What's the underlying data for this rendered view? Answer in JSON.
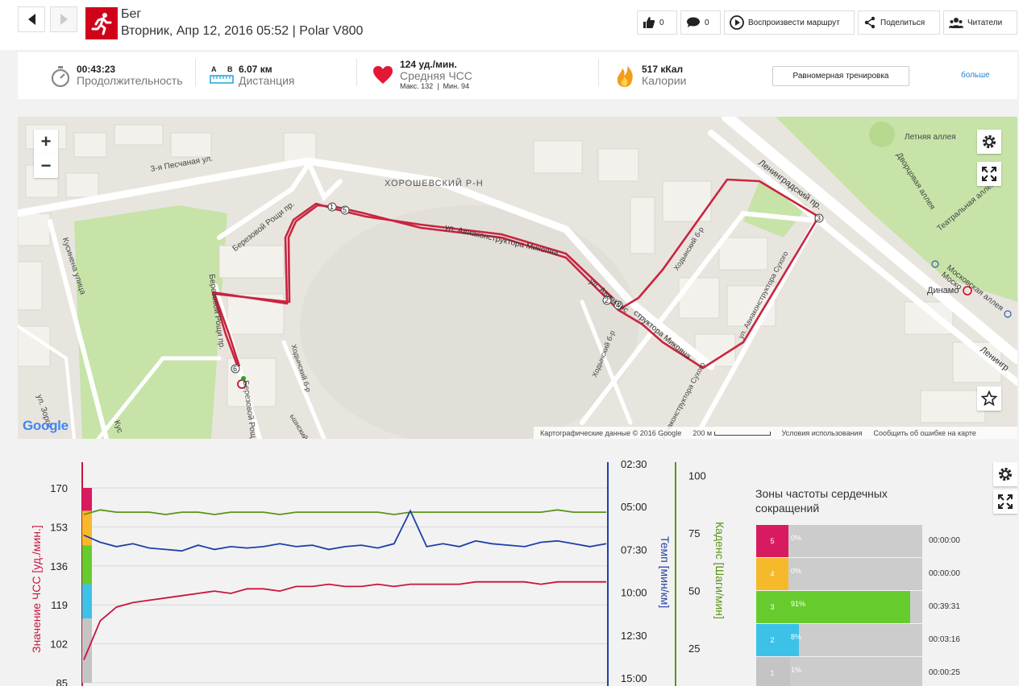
{
  "header": {
    "sport": "Бег",
    "subtitle": "Вторник, Апр 12, 2016 05:52 | Polar V800",
    "likes_count": "0",
    "comments_count": "0",
    "replay_label": "Воспроизвести маршрут",
    "share_label": "Поделиться",
    "readers_label": "Читатели",
    "colors": {
      "sport_icon_bg": "#d0021b"
    }
  },
  "summary": {
    "duration_value": "00:43:23",
    "duration_label": "Продолжительность",
    "distance_ab_a": "A",
    "distance_ab_b": "B",
    "distance_value": "6.07 км",
    "distance_label": "Дистанция",
    "hr_value": "124 уд./мин.",
    "hr_label": "Средняя ЧСС",
    "hr_max": "Макс. 132",
    "hr_sep": "|",
    "hr_min": "Мин. 94",
    "calories_value": "517 кКал",
    "calories_label": "Калории",
    "training_button": "Равномерная тренировка",
    "more_link": "больше"
  },
  "map": {
    "zoom_in": "+",
    "zoom_out": "−",
    "district_label": "ХОРОШЕВСКИЙ Р-Н",
    "streets": {
      "peschanaya": "3-я Песчаная ул.",
      "mikoyana": "ул. Авиаконструктора Микояна",
      "mikoyana2_a": "ул. Авиаконс",
      "mikoyana2_b": "структора Микояна",
      "leningradsky": "Ленинградский пр.",
      "leningradsky2": "Ленингр",
      "khodynsky": "Ходынский б-р",
      "khodynsky2": "Ходынский б-р",
      "khodynsky3": "Ходынский б-р",
      "khodynsky4": "ьшнский пр.",
      "berezovoi": "Березовой Рощи пр.",
      "berezovoi2": "Березовой Рощи пр.",
      "berezovoi3": "Березовой Рощ",
      "kusinena": "Кусинена улица",
      "kusinena2": "Кус",
      "zorge": "ул. Зорге",
      "sukhogo": "ул. Авиаконструктора Сухого",
      "sukhogo2": "Авиаконструктора Сухого",
      "letnyaya": "Летняя аллея",
      "dvortsovaya": "Дворцовая аллея",
      "teatralnaya": "Театральная аллея",
      "moskovskaya": "Московская аллея Моско",
      "dinamo": "Динамо"
    },
    "markers": [
      "1",
      "5",
      "2",
      "4",
      "3",
      "6"
    ],
    "google": "Google",
    "footer_data": "Картографические данные © 2016 Google",
    "footer_scale": "200 м",
    "footer_terms": "Условия использования",
    "footer_report": "Сообщить об ошибке на карте",
    "route_color": "#c8253f"
  },
  "chart": {
    "chart_data": {
      "type": "line",
      "x_label": "",
      "series": [
        {
          "name": "Значение ЧСС [уд./мин.]",
          "color": "#c8153c",
          "axis": "left",
          "ylim": [
            85,
            170
          ],
          "values": [
            95,
            112,
            118,
            120,
            121,
            122,
            123,
            124,
            125,
            124,
            126,
            126,
            125,
            127,
            127,
            128,
            127,
            127,
            128,
            127,
            128,
            128,
            128,
            128,
            129,
            129,
            129,
            129,
            128,
            129,
            129,
            129,
            129
          ]
        },
        {
          "name": "Темп [мин/км]",
          "color": "#1f3fa8",
          "axis": "right1",
          "ylim": [
            "15:00",
            "02:30"
          ],
          "values": [
            "06:40",
            "07:05",
            "07:20",
            "07:10",
            "07:25",
            "07:30",
            "07:35",
            "07:15",
            "07:30",
            "07:20",
            "07:25",
            "07:20",
            "07:10",
            "07:20",
            "07:15",
            "07:30",
            "07:20",
            "07:15",
            "07:25",
            "07:10",
            "05:15",
            "07:20",
            "07:10",
            "07:20",
            "07:00",
            "07:10",
            "07:15",
            "07:20",
            "07:05",
            "07:00",
            "07:10",
            "07:20",
            "07:10"
          ]
        },
        {
          "name": "Каденс [Шаги/мин]",
          "color": "#5c9418",
          "axis": "right2",
          "ylim": [
            10,
            105
          ],
          "values": [
            83,
            85,
            84,
            84,
            84,
            83,
            84,
            84,
            83,
            84,
            84,
            84,
            83,
            84,
            84,
            84,
            84,
            84,
            84,
            83,
            84,
            84,
            84,
            84,
            84,
            84,
            84,
            84,
            84,
            85,
            84,
            84,
            84
          ]
        }
      ],
      "left_ticks": [
        "170",
        "153",
        "136",
        "119",
        "102",
        "85"
      ],
      "pace_ticks": [
        "02:30",
        "05:00",
        "07:30",
        "10:00",
        "12:30",
        "15:00"
      ],
      "cadence_ticks": [
        "100",
        "75",
        "50",
        "25"
      ],
      "left_label": "Значение ЧСС [уд./мин.]",
      "pace_label": "Темп [мин/км]",
      "cadence_label": "Каденс [Шаги/мин]"
    },
    "zones_title": "Зоны частоты сердечных сокращений",
    "zones": [
      {
        "zone": "5",
        "pct": "0%",
        "fraction": 0.0,
        "time": "00:00:00",
        "color": "#d81b60"
      },
      {
        "zone": "4",
        "pct": "0%",
        "fraction": 0.0,
        "time": "00:00:00",
        "color": "#f7b92c"
      },
      {
        "zone": "3",
        "pct": "91%",
        "fraction": 0.91,
        "time": "00:39:31",
        "color": "#66cc2d"
      },
      {
        "zone": "2",
        "pct": "8%",
        "fraction": 0.08,
        "time": "00:03:16",
        "color": "#3cc2e8"
      },
      {
        "zone": "1",
        "pct": "1%",
        "fraction": 0.01,
        "time": "00:00:25",
        "color": "#c4c4c4"
      }
    ]
  }
}
